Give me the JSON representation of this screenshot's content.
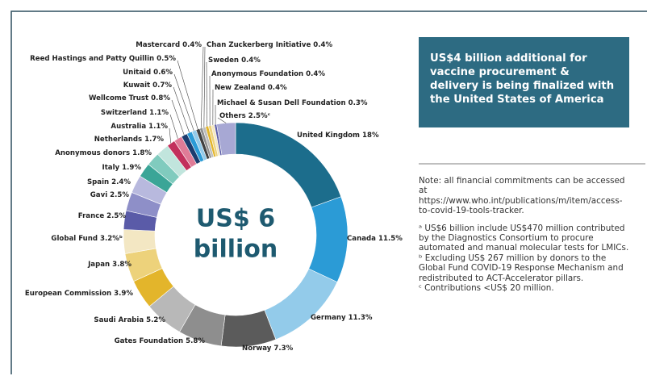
{
  "chart_data": {
    "type": "donut",
    "center_label": [
      "US$ 6",
      "billion"
    ],
    "categories": [
      "United Kingdom",
      "Canada",
      "Germany",
      "Norway",
      "Gates Foundation",
      "Saudi Arabia",
      "European Commission",
      "Japan",
      "Global Fund",
      "France",
      "Gavi",
      "Spain",
      "Italy",
      "Anonymous donors",
      "Netherlands",
      "Australia",
      "Switzerland",
      "Wellcome Trust",
      "Kuwait",
      "Unitaid",
      "Reed Hastings and Patty Quillin",
      "Mastercard",
      "Chan Zuckerberg Initiative",
      "Sweden",
      "Anonymous Foundation",
      "New Zealand",
      "Michael & Susan Dell Foundation",
      "Others"
    ],
    "values": [
      18,
      11.5,
      11.3,
      7.3,
      5.8,
      5.2,
      3.9,
      3.8,
      3.2,
      2.5,
      2.5,
      2.4,
      1.9,
      1.8,
      1.7,
      1.1,
      1.1,
      0.8,
      0.7,
      0.6,
      0.5,
      0.4,
      0.4,
      0.4,
      0.4,
      0.4,
      0.3,
      2.5
    ],
    "value_labels": [
      "18%",
      "11.5%",
      "11.3%",
      "7.3%",
      "5.8%",
      "5.2%",
      "3.9%",
      "3.8%",
      "3.2%ᵇ",
      "2.5%",
      "2.5%",
      "2.4%",
      "1.9%",
      "1.8%",
      "1.7%",
      "1.1%",
      "1.1%",
      "0.8%",
      "0.7%",
      "0.6%",
      "0.5%",
      "0.4%",
      "0.4%",
      "0.4%",
      "0.4%",
      "0.4%",
      "0.3%",
      "2.5%ᶜ"
    ],
    "colors": [
      "#1c6d8c",
      "#2b9bd6",
      "#93cbea",
      "#5b5b5b",
      "#8e8e8e",
      "#b8b8b8",
      "#e3b52b",
      "#edd27b",
      "#f3e7c3",
      "#5a5ba8",
      "#8e8fc8",
      "#b8b9de",
      "#3aa597",
      "#80cbbe",
      "#c1e5dd",
      "#c2305c",
      "#e07b97",
      "#1b3c6e",
      "#2b9bd6",
      "#93cbea",
      "#404040",
      "#8e8e8e",
      "#bdbdbd",
      "#e3b52b",
      "#edd27b",
      "#f3e7c3",
      "#5a5ba8",
      "#a7a8d4"
    ]
  },
  "callout": "US$4 billion additional for vaccine procurement & delivery is being finalized with the United States of America",
  "notes": [
    "Note: all financial commitments can be accessed at https://www.who.int/publications/m/item/access-to-covid-19-tools-tracker.",
    "ᵃ US$6 billion include US$470 million contributed by the Diagnostics Consortium to procure automated and manual molecular tests for LMICs.",
    "ᵇ Excluding US$ 267 million by donors to the Global Fund COVID-19 Response Mechanism and redistributed to ACT-Accelerator pillars.",
    "ᶜ Contributions <US$ 20 million."
  ]
}
